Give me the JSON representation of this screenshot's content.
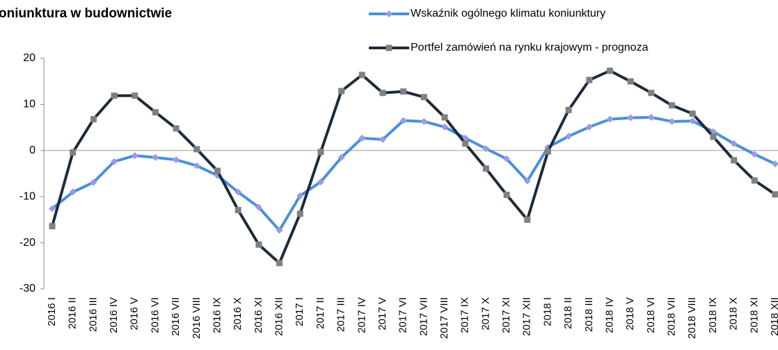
{
  "chart_data": {
    "type": "line",
    "title": "oniunktura w budownictwie",
    "categories": [
      "2016 I",
      "2016 II",
      "2016 III",
      "2016 IV",
      "2016 V",
      "2016 VI",
      "2016 VII",
      "2016 VIII",
      "2016 IX",
      "2016 X",
      "2016 XI",
      "2016 XII",
      "2017 I",
      "2017 II",
      "2017 III",
      "2017 IV",
      "2017 V",
      "2017 VI",
      "2017 VII",
      "2017 VIII",
      "2017 IX",
      "2017 X",
      "2017 XI",
      "2017 XII",
      "2018 I",
      "2018 II",
      "2018 III",
      "2018 IV",
      "2018 V",
      "2018 VI",
      "2018 VII",
      "2018 VIII",
      "2018 IX",
      "2018 X",
      "2018 XI",
      "2018 XII"
    ],
    "series": [
      {
        "name": "Wskaźnik ogólnego klimatu koniunktury",
        "color": "#4a90d9",
        "marker_color": "#9b9be3",
        "marker": "diamond",
        "values": [
          -12.6,
          -9,
          -6.9,
          -2.4,
          -1.1,
          -1.5,
          -2,
          -3.3,
          -5.4,
          -9,
          -12.3,
          -17.3,
          -9.8,
          -6.8,
          -1.5,
          2.7,
          2.4,
          6.5,
          6.3,
          5.1,
          2.7,
          0.4,
          -1.8,
          -6.6,
          0.7,
          3.1,
          5.1,
          6.8,
          7.1,
          7.2,
          6.3,
          6.4,
          4.1,
          1.5,
          -0.8,
          -2.9
        ]
      },
      {
        "name": "Portfel zamówień na rynku krajowym - prognoza",
        "color": "#1c2b3c",
        "marker_color": "#808080",
        "marker": "square",
        "values": [
          -16.4,
          -0.4,
          6.8,
          11.9,
          11.9,
          8.3,
          4.8,
          0.3,
          -4.4,
          -12.9,
          -20.4,
          -24.4,
          -13.7,
          -0.3,
          12.9,
          16.4,
          12.5,
          12.8,
          11.6,
          7.2,
          1.5,
          -3.9,
          -9.6,
          -15,
          -0.2,
          8.8,
          15.3,
          17.3,
          15,
          12.5,
          9.8,
          8,
          3,
          -2.1,
          -6.5,
          -9.5
        ]
      }
    ],
    "ylim": [
      -30,
      20
    ],
    "yticks": [
      -30,
      -20,
      -10,
      0,
      10,
      20
    ],
    "legend": "top-right"
  }
}
